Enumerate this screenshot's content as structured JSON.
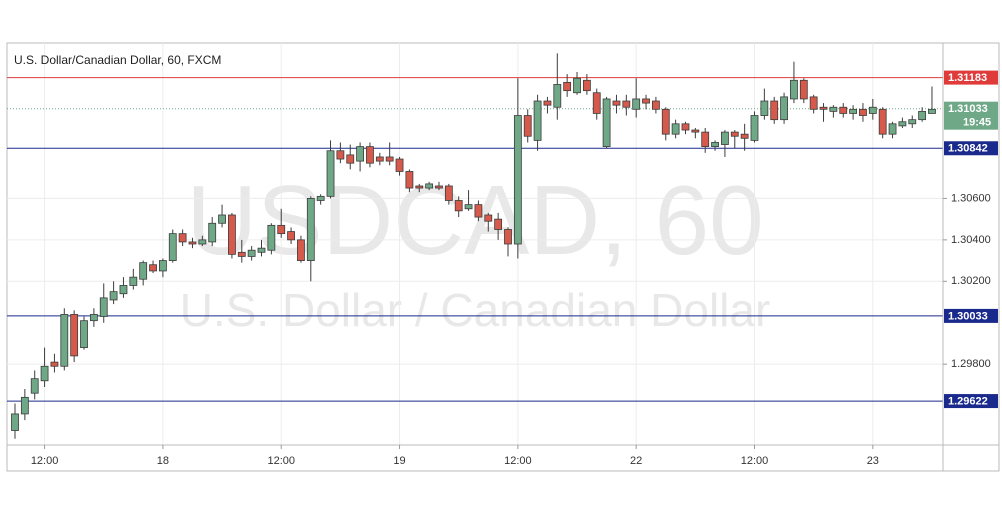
{
  "chart_data": {
    "type": "candlestick",
    "title": "U.S. Dollar/Canadian Dollar, 60, FXCM",
    "watermark": [
      "USDCAD, 60",
      "U.S. Dollar / Canadian Dollar"
    ],
    "categories": [
      null,
      null,
      null,
      "12:00",
      null,
      null,
      null,
      null,
      null,
      null,
      null,
      null,
      null,
      null,
      null,
      "18",
      null,
      null,
      null,
      null,
      null,
      null,
      null,
      null,
      null,
      null,
      null,
      "12:00",
      null,
      null,
      null,
      null,
      null,
      null,
      null,
      null,
      null,
      null,
      null,
      "19",
      null,
      null,
      null,
      null,
      null,
      null,
      null,
      null,
      null,
      null,
      null,
      "12:00",
      null,
      null,
      null,
      null,
      null,
      null,
      null,
      null,
      null,
      null,
      null,
      "22",
      null,
      null,
      null,
      null,
      null,
      null,
      null,
      null,
      null,
      null,
      null,
      "12:00",
      null,
      null,
      null,
      null,
      null,
      null,
      null,
      null,
      null,
      null,
      null,
      "23",
      null,
      null,
      null,
      null,
      null,
      null
    ],
    "open": [
      1.2948,
      1.2956,
      1.2966,
      1.2972,
      1.2981,
      1.2979,
      1.3004,
      1.2988,
      1.3001,
      1.3003,
      1.3011,
      1.3014,
      1.3018,
      1.3021,
      1.3028,
      1.3025,
      1.303,
      1.3043,
      1.3039,
      1.3038,
      1.3039,
      1.3048,
      1.3052,
      1.3034,
      1.3032,
      1.3034,
      1.3035,
      1.3047,
      1.3044,
      1.304,
      1.303,
      1.3059,
      1.3061,
      1.3083,
      1.3081,
      1.3078,
      1.3085,
      1.308,
      1.308,
      1.3079,
      1.3073,
      1.3066,
      1.3065,
      1.3066,
      1.3066,
      1.3059,
      1.3055,
      1.3057,
      1.3052,
      1.305,
      1.3045,
      1.3038,
      1.31,
      1.3088,
      1.3107,
      1.3104,
      1.3116,
      1.3111,
      1.3117,
      1.3111,
      1.3085,
      1.3107,
      1.3107,
      1.3103,
      1.3108,
      1.3107,
      1.3103,
      1.3091,
      1.3096,
      1.3093,
      1.3092,
      1.3085,
      1.3086,
      1.3092,
      1.3091,
      1.3088,
      1.31,
      1.3107,
      1.3098,
      1.3108,
      1.3117,
      1.3109,
      1.3104,
      1.3102,
      1.3104,
      1.3101,
      1.3103,
      1.3101,
      1.3103,
      1.3091,
      1.3095,
      1.3096,
      1.3098,
      1.3101
    ],
    "high": [
      1.2961,
      1.2968,
      1.2977,
      1.2988,
      1.2985,
      1.3007,
      1.3006,
      1.3003,
      1.3007,
      1.3019,
      1.302,
      1.3022,
      1.3026,
      1.303,
      1.303,
      1.3031,
      1.3045,
      1.3045,
      1.3041,
      1.3042,
      1.3051,
      1.3057,
      1.3053,
      1.304,
      1.3037,
      1.304,
      1.3048,
      1.3055,
      1.3046,
      1.3042,
      1.3061,
      1.3062,
      1.3088,
      1.3087,
      1.3086,
      1.3087,
      1.3087,
      1.3082,
      1.3087,
      1.308,
      1.3074,
      1.3067,
      1.3068,
      1.3068,
      1.3067,
      1.3061,
      1.3064,
      1.3059,
      1.3053,
      1.3053,
      1.3046,
      1.3118,
      1.3103,
      1.311,
      1.3109,
      1.313,
      1.312,
      1.3121,
      1.312,
      1.3113,
      1.3109,
      1.311,
      1.311,
      1.3118,
      1.311,
      1.3109,
      1.3104,
      1.3098,
      1.3097,
      1.3094,
      1.3094,
      1.3088,
      1.3093,
      1.3093,
      1.3096,
      1.3102,
      1.3113,
      1.3109,
      1.3111,
      1.3126,
      1.3118,
      1.311,
      1.3106,
      1.3105,
      1.3106,
      1.3105,
      1.3106,
      1.3108,
      1.3104,
      1.3097,
      1.3099,
      1.31,
      1.3104,
      1.3114
    ],
    "low": [
      1.2944,
      1.2953,
      1.2963,
      1.2969,
      1.2976,
      1.2977,
      1.2981,
      1.2987,
      1.2998,
      1.3,
      1.3009,
      1.3012,
      1.3016,
      1.3018,
      1.3024,
      1.3022,
      1.3029,
      1.3037,
      1.3036,
      1.3037,
      1.3037,
      1.3046,
      1.3031,
      1.3029,
      1.303,
      1.3032,
      1.3033,
      1.3041,
      1.3038,
      1.3029,
      1.302,
      1.3057,
      1.306,
      1.3077,
      1.3074,
      1.3073,
      1.3075,
      1.3076,
      1.3076,
      1.3071,
      1.3063,
      1.3063,
      1.3064,
      1.3064,
      1.3057,
      1.3051,
      1.3054,
      1.3049,
      1.3044,
      1.304,
      1.3032,
      1.3031,
      1.3087,
      1.3083,
      1.3101,
      1.3098,
      1.3109,
      1.311,
      1.311,
      1.3098,
      1.3084,
      1.3101,
      1.31,
      1.3099,
      1.3103,
      1.3101,
      1.3088,
      1.3089,
      1.3091,
      1.3089,
      1.3082,
      1.3083,
      1.308,
      1.3084,
      1.3083,
      1.3087,
      1.3098,
      1.3096,
      1.3096,
      1.3106,
      1.3106,
      1.3101,
      1.3097,
      1.3099,
      1.3099,
      1.3098,
      1.3097,
      1.3098,
      1.3089,
      1.3089,
      1.3094,
      1.3094,
      1.3097,
      1.3101
    ],
    "close": [
      1.2956,
      1.2964,
      1.2973,
      1.2979,
      1.2979,
      1.3004,
      1.2984,
      1.3001,
      1.3004,
      1.3012,
      1.3015,
      1.3018,
      1.3022,
      1.3029,
      1.3025,
      1.303,
      1.3043,
      1.3039,
      1.3038,
      1.304,
      1.3048,
      1.3052,
      1.3033,
      1.3032,
      1.3035,
      1.3036,
      1.3047,
      1.3043,
      1.304,
      1.303,
      1.306,
      1.3061,
      1.3083,
      1.3079,
      1.3077,
      1.3085,
      1.3077,
      1.3078,
      1.3078,
      1.3073,
      1.3065,
      1.3065,
      1.3067,
      1.3065,
      1.3059,
      1.3054,
      1.3057,
      1.3051,
      1.3049,
      1.3045,
      1.3038,
      1.31,
      1.309,
      1.3107,
      1.3105,
      1.3115,
      1.3112,
      1.3118,
      1.3112,
      1.3101,
      1.3108,
      1.3105,
      1.3104,
      1.3108,
      1.3106,
      1.3103,
      1.3091,
      1.3096,
      1.3093,
      1.3092,
      1.3085,
      1.3087,
      1.3092,
      1.309,
      1.3089,
      1.31,
      1.3107,
      1.3098,
      1.3109,
      1.3117,
      1.3108,
      1.3103,
      1.3103,
      1.3104,
      1.3101,
      1.3103,
      1.31,
      1.3104,
      1.3091,
      1.3096,
      1.3097,
      1.3098,
      1.3102,
      1.3103
    ],
    "colors": {
      "up": "#6fa887",
      "down": "#d55a4c",
      "wick": "#3c3c3c"
    },
    "ylim": [
      1.2941,
      1.3135
    ],
    "yticks": [
      {
        "value": 1.306,
        "label": "1.30600"
      },
      {
        "value": 1.304,
        "label": "1.30400"
      },
      {
        "value": 1.302,
        "label": "1.30200"
      },
      {
        "value": 1.298,
        "label": "1.29800"
      }
    ],
    "grid": true,
    "hlines": [
      {
        "value": 1.31183,
        "color": "#e03b3b"
      },
      {
        "value": 1.30842,
        "color": "#1a2a8c"
      },
      {
        "value": 1.30033,
        "color": "#1a2a8c"
      },
      {
        "value": 1.29622,
        "color": "#1a2a8c"
      }
    ],
    "last_price": {
      "value": 1.31033,
      "countdown": "19:45",
      "color": "#6fa887"
    }
  }
}
